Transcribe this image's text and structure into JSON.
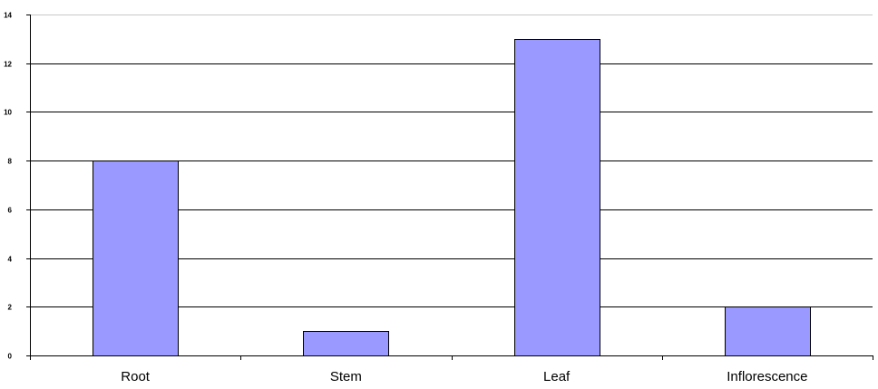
{
  "chart_data": {
    "type": "bar",
    "categories": [
      "Root",
      "Stem",
      "Leaf",
      "Inflorescence"
    ],
    "values": [
      8,
      1,
      13,
      2
    ],
    "ylim": [
      0,
      14
    ],
    "yticks": [
      "0",
      "2",
      "4",
      "6",
      "8",
      "10",
      "12",
      "14"
    ],
    "grid": true,
    "legend": "none",
    "colors": {
      "bar_fill": "#9999ff",
      "bar_stroke": "#000000",
      "gridline": "#000000",
      "axis": "#000000"
    }
  }
}
